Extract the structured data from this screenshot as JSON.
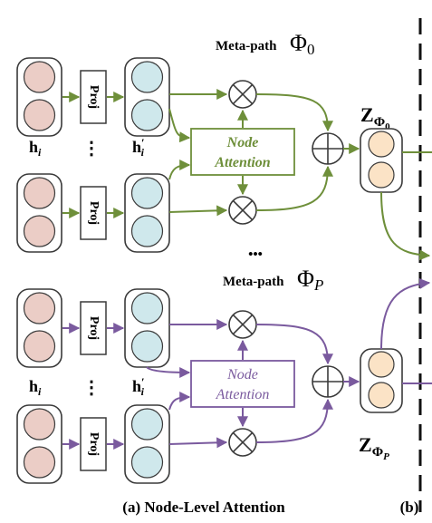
{
  "colors": {
    "green": "#6e8f3a",
    "purple": "#7a5a9e",
    "pink": "#ebcdc6",
    "cyan": "#cfe8ec",
    "peach": "#fbe3c6",
    "stroke": "#3a3a3a"
  },
  "icons": {
    "multiply": "circle-times-icon",
    "aggregate": "circle-plus-icon"
  },
  "top_block": {
    "meta_path_prefix": "Meta-path",
    "meta_path_symbol": "Φ",
    "meta_path_sub": "0",
    "proj_label_1": "Proj",
    "proj_label_2": "Proj",
    "h_label": "h",
    "h_sub": "i",
    "dots": "⋮",
    "hp_label": "h",
    "hp_prime": "′",
    "hp_sub": "i",
    "attention_line1": "Node",
    "attention_line2": "Attention",
    "z_label": "Z",
    "z_sub": "Φ",
    "z_subsub": "0"
  },
  "ellipsis": "•••",
  "bottom_block": {
    "meta_path_prefix": "Meta-path",
    "meta_path_symbol": "Φ",
    "meta_path_sub": "P",
    "proj_label_1": "Proj",
    "proj_label_2": "Proj",
    "h_label": "h",
    "h_sub": "i",
    "dots": "⋮",
    "hp_label": "h",
    "hp_prime": "′",
    "hp_sub": "i",
    "attention_line1": "Node",
    "attention_line2": "Attention",
    "z_label": "Z",
    "z_sub": "Φ",
    "z_subsub": "P"
  },
  "captions": {
    "left": "(a) Node-Level Attention",
    "right": "(b)"
  }
}
